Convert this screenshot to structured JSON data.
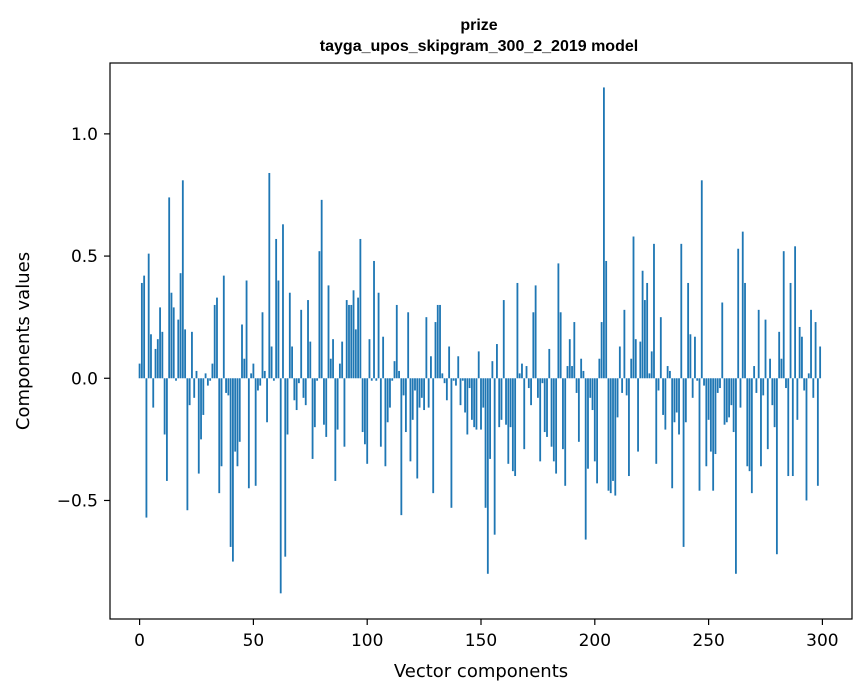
{
  "chart_data": {
    "type": "bar",
    "title": "prize",
    "subtitle": "tayga_upos_skipgram_300_2_2019 model",
    "xlabel": "Vector components",
    "ylabel": "Components values",
    "xlim": [
      -13,
      313
    ],
    "ylim": [
      -0.985,
      1.29
    ],
    "xticks": [
      0,
      50,
      100,
      150,
      200,
      250,
      300
    ],
    "xtick_labels": [
      "0",
      "50",
      "100",
      "150",
      "200",
      "250",
      "300"
    ],
    "yticks": [
      -0.5,
      0.0,
      0.5,
      1.0
    ],
    "ytick_labels": [
      "−0.5",
      "0.0",
      "0.5",
      "1.0"
    ],
    "grid": false,
    "bar_color": "#1f77b4",
    "values": [
      0.06,
      0.39,
      0.42,
      -0.57,
      0.51,
      0.18,
      -0.12,
      0.12,
      0.16,
      0.29,
      0.19,
      -0.23,
      -0.42,
      0.74,
      0.35,
      0.29,
      -0.01,
      0.24,
      0.43,
      0.81,
      0.2,
      -0.54,
      -0.11,
      0.19,
      -0.08,
      0.03,
      -0.39,
      -0.25,
      -0.15,
      0.02,
      -0.03,
      -0.01,
      0.06,
      0.3,
      0.33,
      -0.47,
      -0.36,
      0.42,
      -0.06,
      -0.07,
      -0.69,
      -0.75,
      -0.3,
      -0.36,
      -0.26,
      0.22,
      0.08,
      0.4,
      -0.45,
      0.02,
      0.06,
      -0.44,
      -0.05,
      -0.03,
      0.27,
      0.03,
      -0.18,
      0.84,
      0.13,
      -0.01,
      0.57,
      0.4,
      -0.88,
      0.63,
      -0.73,
      -0.23,
      0.35,
      0.13,
      -0.09,
      -0.13,
      -0.02,
      0.28,
      -0.08,
      -0.11,
      0.32,
      0.15,
      -0.33,
      -0.2,
      -0.01,
      0.52,
      0.73,
      -0.19,
      -0.24,
      0.38,
      0.08,
      0.16,
      -0.42,
      -0.21,
      0.06,
      0.15,
      -0.28,
      0.32,
      0.3,
      0.3,
      0.36,
      0.2,
      0.33,
      0.57,
      -0.22,
      -0.27,
      -0.35,
      0.16,
      -0.01,
      0.48,
      -0.01,
      0.35,
      -0.28,
      0.17,
      -0.36,
      -0.18,
      -0.12,
      -0.01,
      0.07,
      0.3,
      0.03,
      -0.56,
      -0.07,
      -0.22,
      0.27,
      -0.34,
      -0.17,
      -0.05,
      -0.41,
      -0.12,
      -0.08,
      -0.13,
      0.25,
      -0.12,
      0.09,
      -0.47,
      0.23,
      0.3,
      0.3,
      0.02,
      -0.02,
      -0.09,
      0.13,
      -0.53,
      -0.01,
      -0.03,
      0.09,
      -0.11,
      -0.01,
      -0.14,
      -0.23,
      -0.04,
      -0.17,
      -0.2,
      -0.21,
      0.11,
      -0.21,
      -0.12,
      -0.53,
      -0.8,
      -0.33,
      0.07,
      -0.64,
      0.14,
      -0.2,
      -0.17,
      0.32,
      -0.19,
      -0.35,
      -0.2,
      -0.38,
      -0.4,
      0.39,
      0.02,
      0.06,
      -0.29,
      0.05,
      -0.04,
      -0.11,
      0.27,
      0.38,
      -0.08,
      -0.34,
      -0.02,
      -0.22,
      -0.24,
      0.12,
      -0.28,
      -0.34,
      -0.39,
      0.47,
      0.27,
      -0.29,
      -0.44,
      0.05,
      0.16,
      0.05,
      0.23,
      -0.06,
      -0.26,
      0.08,
      0.03,
      -0.66,
      -0.37,
      -0.08,
      -0.13,
      -0.34,
      -0.43,
      0.08,
      0.23,
      1.19,
      0.48,
      -0.46,
      -0.47,
      -0.42,
      -0.48,
      -0.16,
      0.13,
      -0.06,
      0.28,
      -0.07,
      -0.4,
      0.08,
      0.58,
      0.16,
      -0.3,
      0.15,
      0.44,
      0.32,
      0.39,
      0.02,
      0.11,
      0.55,
      -0.35,
      -0.05,
      0.25,
      -0.15,
      -0.21,
      0.05,
      0.03,
      -0.45,
      -0.18,
      -0.14,
      -0.23,
      0.55,
      -0.69,
      -0.18,
      0.39,
      0.18,
      -0.08,
      0.17,
      -0.01,
      -0.46,
      0.81,
      -0.03,
      -0.36,
      -0.17,
      -0.3,
      -0.46,
      -0.31,
      -0.06,
      -0.04,
      0.31,
      -0.19,
      -0.18,
      -0.16,
      -0.11,
      -0.22,
      -0.8,
      0.53,
      -0.12,
      0.6,
      0.39,
      -0.36,
      -0.38,
      -0.47,
      0.05,
      -0.06,
      0.28,
      -0.36,
      -0.07,
      0.24,
      -0.29,
      0.08,
      -0.11,
      -0.2,
      -0.72,
      0.19,
      0.08,
      0.52,
      -0.04,
      -0.4,
      0.39,
      -0.4,
      0.54,
      -0.17,
      0.21,
      0.17,
      -0.05,
      -0.5,
      0.02,
      0.28,
      -0.08,
      0.23,
      -0.44,
      0.13
    ]
  }
}
